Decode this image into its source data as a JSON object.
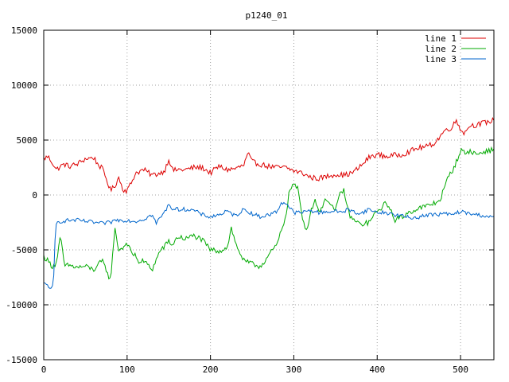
{
  "chart_data": {
    "type": "line",
    "title": "p1240_01",
    "xlabel": "",
    "ylabel": "",
    "xlim": [
      0,
      540
    ],
    "ylim": [
      -15000,
      15000
    ],
    "xticks": [
      0,
      100,
      200,
      300,
      400,
      500
    ],
    "yticks": [
      -15000,
      -10000,
      -5000,
      0,
      5000,
      10000,
      15000
    ],
    "grid": true,
    "legend_position": "top-right",
    "series": [
      {
        "name": "line 1",
        "color": "#dd0000",
        "x": [
          0,
          5,
          10,
          15,
          20,
          25,
          30,
          40,
          50,
          60,
          65,
          70,
          75,
          80,
          85,
          90,
          95,
          100,
          105,
          110,
          120,
          130,
          140,
          145,
          150,
          155,
          160,
          170,
          180,
          190,
          200,
          210,
          220,
          230,
          240,
          245,
          250,
          260,
          270,
          280,
          290,
          300,
          310,
          320,
          330,
          340,
          350,
          360,
          370,
          380,
          390,
          400,
          410,
          420,
          430,
          440,
          450,
          460,
          470,
          475,
          480,
          490,
          495,
          500,
          505,
          510,
          520,
          530,
          540
        ],
        "y": [
          3300,
          3500,
          3000,
          2300,
          2600,
          2800,
          2600,
          2800,
          3300,
          3400,
          2800,
          2400,
          1500,
          400,
          800,
          1600,
          500,
          400,
          1100,
          2000,
          2300,
          1800,
          2000,
          2200,
          3300,
          2200,
          2300,
          2300,
          2500,
          2500,
          2000,
          2600,
          2300,
          2400,
          2700,
          3800,
          3000,
          2800,
          2600,
          2500,
          2500,
          2200,
          2000,
          1600,
          1500,
          1700,
          1900,
          1800,
          2000,
          2600,
          3400,
          3700,
          3500,
          3600,
          3700,
          4000,
          4300,
          4400,
          4800,
          5300,
          5800,
          6200,
          6800,
          6000,
          5600,
          6300,
          6400,
          6600,
          6800
        ]
      },
      {
        "name": "line 2",
        "color": "#00aa00",
        "x": [
          0,
          5,
          10,
          15,
          20,
          25,
          30,
          40,
          50,
          60,
          70,
          75,
          80,
          83,
          85,
          90,
          95,
          100,
          105,
          110,
          115,
          120,
          130,
          140,
          145,
          150,
          155,
          160,
          170,
          180,
          190,
          200,
          210,
          220,
          225,
          230,
          240,
          250,
          260,
          270,
          280,
          290,
          295,
          300,
          305,
          310,
          315,
          320,
          325,
          330,
          340,
          350,
          355,
          360,
          365,
          370,
          380,
          390,
          400,
          410,
          415,
          420,
          430,
          440,
          450,
          460,
          470,
          475,
          480,
          485,
          490,
          495,
          500,
          505,
          510,
          520,
          530,
          540
        ],
        "y": [
          -5600,
          -6000,
          -6500,
          -6200,
          -3800,
          -6500,
          -6400,
          -6600,
          -6500,
          -6800,
          -6000,
          -6800,
          -7800,
          -5200,
          -3000,
          -5000,
          -4800,
          -4300,
          -5300,
          -5500,
          -6200,
          -6000,
          -6800,
          -5000,
          -4700,
          -4200,
          -4600,
          -3800,
          -4000,
          -3700,
          -4100,
          -5000,
          -5100,
          -4800,
          -3000,
          -4400,
          -6000,
          -6300,
          -6500,
          -5500,
          -4500,
          -2000,
          500,
          1000,
          500,
          -2000,
          -3200,
          -1700,
          -300,
          -1500,
          -300,
          -1500,
          0,
          500,
          -1500,
          -2200,
          -2700,
          -2500,
          -1500,
          -800,
          -1000,
          -2300,
          -2000,
          -1500,
          -1200,
          -1000,
          -700,
          -500,
          500,
          1600,
          2200,
          3000,
          4100,
          3800,
          4000,
          3700,
          4000,
          4100
        ]
      },
      {
        "name": "line 3",
        "color": "#0066cc",
        "x": [
          0,
          5,
          10,
          12,
          14,
          16,
          20,
          30,
          40,
          50,
          60,
          70,
          80,
          85,
          90,
          100,
          110,
          120,
          125,
          130,
          135,
          140,
          145,
          150,
          155,
          160,
          170,
          180,
          190,
          200,
          210,
          220,
          230,
          240,
          250,
          260,
          270,
          280,
          285,
          290,
          300,
          310,
          320,
          330,
          340,
          350,
          360,
          365,
          370,
          380,
          390,
          400,
          410,
          420,
          430,
          440,
          450,
          460,
          470,
          480,
          490,
          500,
          510,
          520,
          530,
          540
        ],
        "y": [
          -8100,
          -8200,
          -8700,
          -7500,
          -3000,
          -2500,
          -2400,
          -2300,
          -2300,
          -2400,
          -2500,
          -2600,
          -2500,
          -2300,
          -2300,
          -2300,
          -2400,
          -2200,
          -2000,
          -1800,
          -2600,
          -2000,
          -1600,
          -800,
          -1300,
          -1300,
          -1300,
          -1400,
          -1800,
          -2000,
          -1800,
          -1500,
          -1900,
          -1300,
          -1700,
          -2000,
          -1800,
          -1500,
          -700,
          -700,
          -1600,
          -1600,
          -1400,
          -1600,
          -1500,
          -1500,
          -1500,
          -1300,
          -1500,
          -1700,
          -1300,
          -1600,
          -1600,
          -1800,
          -1900,
          -2100,
          -2000,
          -1800,
          -1800,
          -1700,
          -1800,
          -1500,
          -1700,
          -1800,
          -1900,
          -2100
        ]
      }
    ]
  }
}
